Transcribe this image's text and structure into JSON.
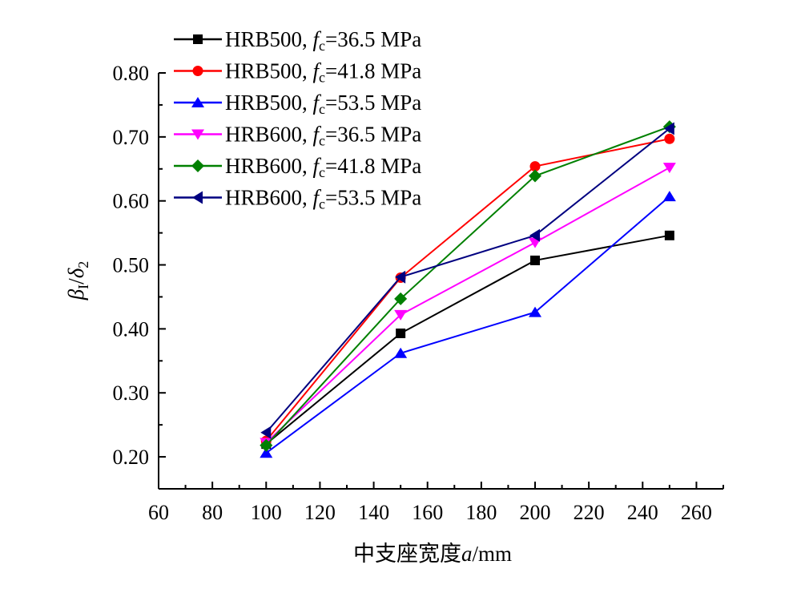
{
  "chart_data": {
    "type": "line",
    "title": "",
    "xlabel_prefix": "中支座宽度",
    "xlabel_var": "a",
    "xlabel_suffix": "/mm",
    "ylabel_beta": "β",
    "ylabel_beta_sub": "I",
    "ylabel_slash": "/",
    "ylabel_delta": "δ",
    "ylabel_delta_sub": "2",
    "xlim": [
      60,
      270
    ],
    "ylim": [
      0.15,
      0.8
    ],
    "xticks": [
      60,
      80,
      100,
      120,
      140,
      160,
      180,
      200,
      220,
      240,
      260
    ],
    "xtick_labels": [
      "60",
      "80",
      "100",
      "120",
      "140",
      "160",
      "180",
      "200",
      "220",
      "240",
      "260"
    ],
    "yticks": [
      0.2,
      0.3,
      0.4,
      0.5,
      0.6,
      0.7,
      0.8
    ],
    "ytick_labels": [
      "0.20",
      "0.30",
      "0.40",
      "0.50",
      "0.60",
      "0.70",
      "0.80"
    ],
    "grid": false,
    "legend_position": "top-left",
    "x": [
      100,
      150,
      200,
      250
    ],
    "series": [
      {
        "name": "HRB500, fc=36.5 MPa",
        "grade": "HRB500, ",
        "fc_var": "f",
        "fc_sub": "c",
        "fc_val": "=36.5 MPa",
        "color": "#000000",
        "marker": "square",
        "values": [
          0.22,
          0.393,
          0.507,
          0.546
        ]
      },
      {
        "name": "HRB500, fc=41.8 MPa",
        "grade": "HRB500, ",
        "fc_var": "f",
        "fc_sub": "c",
        "fc_val": "=41.8 MPa",
        "color": "#ff0000",
        "marker": "circle",
        "values": [
          0.225,
          0.48,
          0.654,
          0.697
        ]
      },
      {
        "name": "HRB500, fc=53.5 MPa",
        "grade": "HRB500, ",
        "fc_var": "f",
        "fc_sub": "c",
        "fc_val": "=53.5 MPa",
        "color": "#0000ff",
        "marker": "triangle-up",
        "values": [
          0.206,
          0.362,
          0.426,
          0.607
        ]
      },
      {
        "name": "HRB600, fc=36.5 MPa",
        "grade": "HRB600, ",
        "fc_var": "f",
        "fc_sub": "c",
        "fc_val": "=36.5 MPa",
        "color": "#ff00ff",
        "marker": "triangle-down",
        "values": [
          0.222,
          0.422,
          0.535,
          0.652
        ]
      },
      {
        "name": "HRB600,  fc=41.8 MPa",
        "grade": "HRB600,  ",
        "fc_var": "f",
        "fc_sub": "c",
        "fc_val": "=41.8 MPa",
        "color": "#008000",
        "marker": "diamond",
        "values": [
          0.218,
          0.447,
          0.639,
          0.716
        ]
      },
      {
        "name": "HRB600,  fc=53.5 MPa",
        "grade": "HRB600,  ",
        "fc_var": "f",
        "fc_sub": "c",
        "fc_val": "=53.5 MPa",
        "color": "#000080",
        "marker": "triangle-left",
        "values": [
          0.238,
          0.481,
          0.546,
          0.713
        ]
      }
    ]
  }
}
